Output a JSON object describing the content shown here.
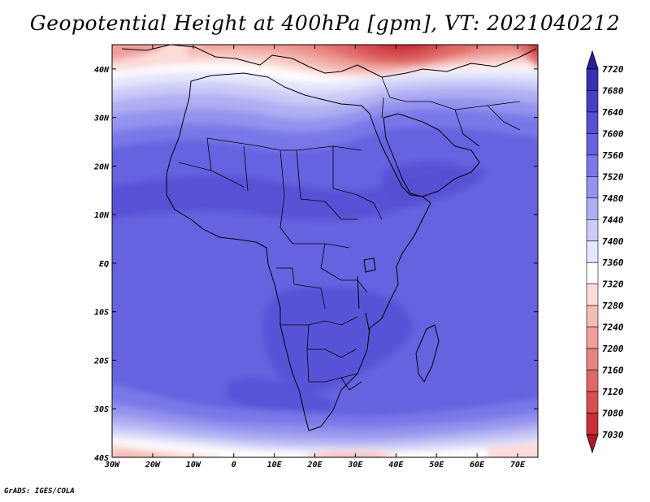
{
  "title": "Geopotential Height at 400hPa [gpm], VT: 2021040212",
  "footer": "GrADS: IGES/COLA",
  "map": {
    "region": "Africa and Middle East",
    "projection": "latlon",
    "lon_range": [
      -30,
      75
    ],
    "lat_range": [
      -40,
      45
    ],
    "coastlines": true,
    "country_borders": true,
    "x_tick_labels": [
      "30W",
      "20W",
      "10W",
      "0",
      "10E",
      "20E",
      "30E",
      "40E",
      "50E",
      "60E",
      "70E"
    ],
    "y_tick_labels": [
      "40S",
      "30S",
      "20S",
      "10S",
      "EQ",
      "10N",
      "20N",
      "30N",
      "40N"
    ]
  },
  "colorbar": {
    "levels": [
      "7030",
      "7080",
      "7120",
      "7160",
      "7200",
      "7240",
      "7280",
      "7320",
      "7360",
      "7400",
      "7440",
      "7480",
      "7520",
      "7560",
      "7600",
      "7640",
      "7680",
      "7720"
    ],
    "colors": [
      "#b2182b",
      "#c8313b",
      "#d6504f",
      "#e06a68",
      "#e88580",
      "#ef9f99",
      "#f5bcb6",
      "#fbdcd9",
      "#ffffff",
      "#e5e5fb",
      "#cbcbf7",
      "#afaff3",
      "#9493ee",
      "#7a78e8",
      "#6662e0",
      "#5650d4",
      "#463fc3",
      "#3a2fb0",
      "#2b1f96"
    ],
    "extend": "both"
  }
}
